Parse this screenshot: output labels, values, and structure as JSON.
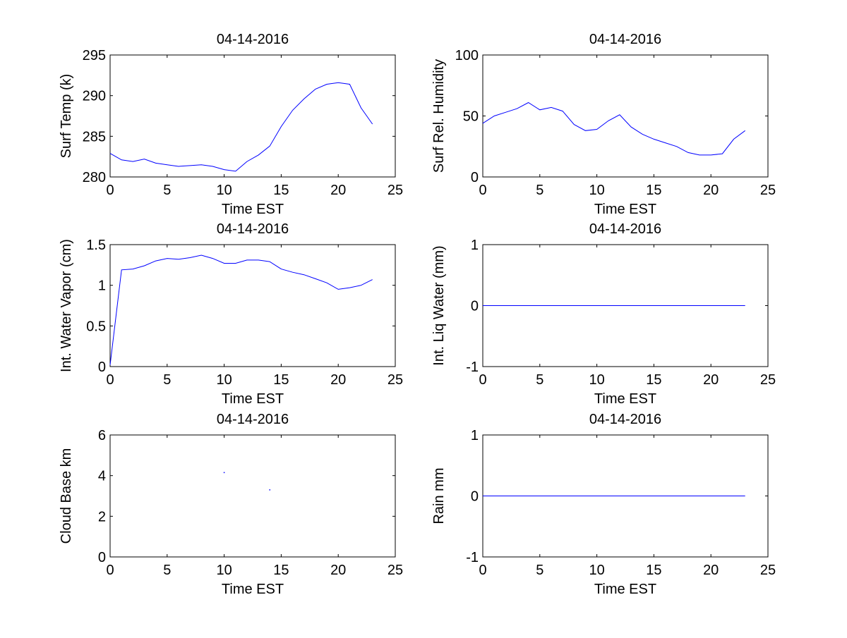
{
  "figure": {
    "background": "#ffffff",
    "line_color": "#0000ff",
    "axis_color": "#000000"
  },
  "chart_data": [
    {
      "type": "line",
      "title": "04-14-2016",
      "xlabel": "Time EST",
      "ylabel": "Surf Temp (k)",
      "xlim": [
        0,
        25
      ],
      "ylim": [
        280,
        295
      ],
      "xticks": [
        0,
        5,
        10,
        15,
        20,
        25
      ],
      "yticks": [
        280,
        285,
        290,
        295
      ],
      "x": [
        0,
        1,
        2,
        3,
        4,
        5,
        6,
        7,
        8,
        9,
        10,
        11,
        12,
        13,
        14,
        15,
        16,
        17,
        18,
        19,
        20,
        21,
        22,
        23
      ],
      "y": [
        282.9,
        282.1,
        281.9,
        282.2,
        281.7,
        281.5,
        281.3,
        281.4,
        281.5,
        281.3,
        280.9,
        280.7,
        281.9,
        282.7,
        283.8,
        286.2,
        288.2,
        289.6,
        290.8,
        291.4,
        291.6,
        291.4,
        288.5,
        286.5
      ]
    },
    {
      "type": "line",
      "title": "04-14-2016",
      "xlabel": "Time EST",
      "ylabel": "Surf Rel. Humidity",
      "xlim": [
        0,
        25
      ],
      "ylim": [
        0,
        100
      ],
      "xticks": [
        0,
        5,
        10,
        15,
        20,
        25
      ],
      "yticks": [
        0,
        50,
        100
      ],
      "x": [
        0,
        1,
        2,
        3,
        4,
        5,
        6,
        7,
        8,
        9,
        10,
        11,
        12,
        13,
        14,
        15,
        16,
        17,
        18,
        19,
        20,
        21,
        22,
        23
      ],
      "y": [
        44,
        50,
        53,
        56,
        61,
        55,
        57,
        54,
        43,
        38,
        39,
        46,
        51,
        41,
        35,
        31,
        28,
        25,
        20,
        18,
        18,
        19,
        31,
        38
      ]
    },
    {
      "type": "line",
      "title": "04-14-2016",
      "xlabel": "Time EST",
      "ylabel": "Int. Water Vapor (cm)",
      "xlim": [
        0,
        25
      ],
      "ylim": [
        0,
        1.5
      ],
      "xticks": [
        0,
        5,
        10,
        15,
        20,
        25
      ],
      "yticks": [
        0,
        0.5,
        1,
        1.5
      ],
      "x": [
        0,
        1,
        2,
        3,
        4,
        5,
        6,
        7,
        8,
        9,
        10,
        11,
        12,
        13,
        14,
        15,
        16,
        17,
        18,
        19,
        20,
        21,
        22,
        23
      ],
      "y": [
        0.02,
        1.19,
        1.2,
        1.24,
        1.3,
        1.33,
        1.32,
        1.34,
        1.37,
        1.33,
        1.27,
        1.27,
        1.31,
        1.31,
        1.29,
        1.2,
        1.16,
        1.13,
        1.08,
        1.03,
        0.95,
        0.97,
        1.0,
        1.07
      ]
    },
    {
      "type": "line",
      "title": "04-14-2016",
      "xlabel": "Time EST",
      "ylabel": "Int. Liq Water (mm)",
      "xlim": [
        0,
        25
      ],
      "ylim": [
        -1,
        1
      ],
      "xticks": [
        0,
        5,
        10,
        15,
        20,
        25
      ],
      "yticks": [
        -1,
        0,
        1
      ],
      "x": [
        0,
        23
      ],
      "y": [
        0,
        0
      ]
    },
    {
      "type": "scatter",
      "title": "04-14-2016",
      "xlabel": "Time EST",
      "ylabel": "Cloud Base km",
      "xlim": [
        0,
        25
      ],
      "ylim": [
        0,
        6
      ],
      "xticks": [
        0,
        5,
        10,
        15,
        20,
        25
      ],
      "yticks": [
        0,
        2,
        4,
        6
      ],
      "x": [
        10,
        14
      ],
      "y": [
        4.15,
        3.3
      ]
    },
    {
      "type": "line",
      "title": "04-14-2016",
      "xlabel": "Time EST",
      "ylabel": "Rain mm",
      "xlim": [
        0,
        25
      ],
      "ylim": [
        -1,
        1
      ],
      "xticks": [
        0,
        5,
        10,
        15,
        20,
        25
      ],
      "yticks": [
        -1,
        0,
        1
      ],
      "x": [
        0,
        23
      ],
      "y": [
        0,
        0
      ]
    }
  ]
}
